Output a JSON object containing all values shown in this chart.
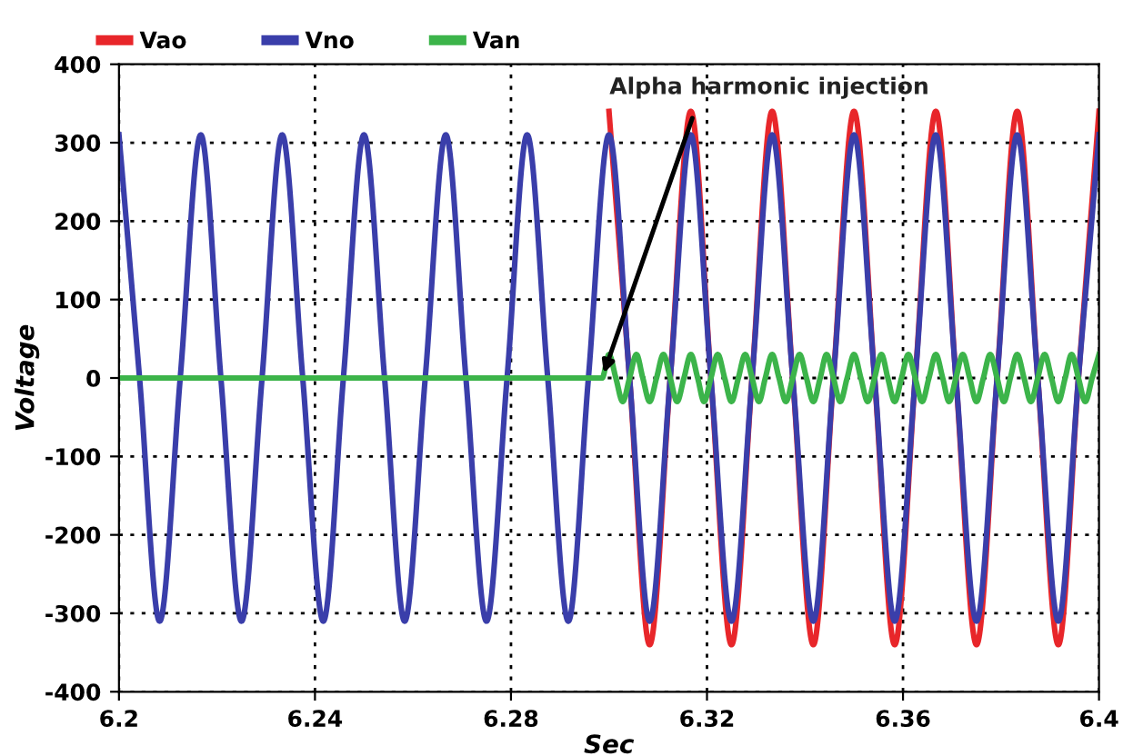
{
  "chart_data": {
    "type": "line",
    "xlabel": "Sec",
    "ylabel": "Voltage",
    "x": [
      6.2,
      6.2042,
      6.2083,
      6.2125,
      6.2167,
      6.2208,
      6.225,
      6.2292,
      6.2333,
      6.2375,
      6.2417,
      6.2458,
      6.25,
      6.2542,
      6.2583,
      6.2625,
      6.2667,
      6.2708,
      6.275,
      6.2792,
      6.2833,
      6.2875,
      6.2917,
      6.2958,
      6.3,
      6.3042,
      6.3083,
      6.3125,
      6.3167,
      6.3208,
      6.325,
      6.3292,
      6.3333,
      6.3375,
      6.3417,
      6.3458,
      6.35,
      6.3542,
      6.3583,
      6.3625,
      6.3667,
      6.3708,
      6.375,
      6.3792,
      6.3833,
      6.3875,
      6.3917,
      6.3958,
      6.4
    ],
    "series": [
      {
        "name": "Vao",
        "color": "#e8262a",
        "values": [
          null,
          null,
          null,
          null,
          null,
          null,
          null,
          null,
          null,
          null,
          null,
          null,
          null,
          null,
          null,
          null,
          null,
          null,
          null,
          null,
          null,
          null,
          null,
          null,
          340,
          0,
          -340,
          0,
          340,
          0,
          -340,
          0,
          340,
          0,
          -340,
          0,
          340,
          0,
          -340,
          0,
          340,
          0,
          -340,
          0,
          340,
          0,
          -340,
          0,
          340
        ]
      },
      {
        "name": "Vno",
        "color": "#3a3eaa",
        "values": [
          310,
          0,
          -310,
          0,
          310,
          0,
          -310,
          0,
          310,
          0,
          -310,
          0,
          310,
          0,
          -310,
          0,
          310,
          0,
          -310,
          0,
          310,
          0,
          -310,
          0,
          310,
          0,
          -310,
          0,
          310,
          0,
          -310,
          0,
          310,
          0,
          -310,
          0,
          310,
          0,
          -310,
          0,
          310,
          0,
          -310,
          0,
          310,
          0,
          -310,
          0,
          310
        ]
      },
      {
        "name": "Van",
        "color": "#3cb44a",
        "x": [
          6.2,
          6.2986,
          6.3,
          6.3014,
          6.3028,
          6.3042,
          6.3056,
          6.3069,
          6.3083,
          6.3097,
          6.3111,
          6.3125,
          6.3139,
          6.3153,
          6.3167,
          6.3181,
          6.3194,
          6.3208,
          6.3222,
          6.3236,
          6.325,
          6.3264,
          6.3278,
          6.3292,
          6.3306,
          6.3319,
          6.3333,
          6.3347,
          6.3361,
          6.3375,
          6.3389,
          6.3403,
          6.3417,
          6.3431,
          6.3444,
          6.3458,
          6.3472,
          6.3486,
          6.35,
          6.3514,
          6.3528,
          6.3542,
          6.3556,
          6.3569,
          6.3583,
          6.3597,
          6.3611,
          6.3625,
          6.3639,
          6.3653,
          6.3667,
          6.3681,
          6.3694,
          6.3708,
          6.3722,
          6.3736,
          6.375,
          6.3764,
          6.3778,
          6.3792,
          6.3806,
          6.3819,
          6.3833,
          6.3847,
          6.3861,
          6.3875,
          6.3889,
          6.3903,
          6.3917,
          6.3931,
          6.3944,
          6.3958,
          6.3972,
          6.3986,
          6.4
        ],
        "values": [
          0,
          0,
          30,
          0,
          -30,
          0,
          30,
          0,
          -30,
          0,
          30,
          0,
          -30,
          0,
          30,
          0,
          -30,
          0,
          30,
          0,
          -30,
          0,
          30,
          0,
          -30,
          0,
          30,
          0,
          -30,
          0,
          30,
          0,
          -30,
          0,
          30,
          0,
          -30,
          0,
          30,
          0,
          -30,
          0,
          30,
          0,
          -30,
          0,
          30,
          0,
          -30,
          0,
          30,
          0,
          -30,
          0,
          30,
          0,
          -30,
          0,
          30,
          0,
          -30,
          0,
          30,
          0,
          -30,
          0,
          30,
          0,
          -30,
          0,
          30,
          0,
          -30,
          0,
          30
        ]
      }
    ],
    "annotations": [
      {
        "text": "Alpha harmonic injection",
        "x": 6.2986,
        "y": 0
      }
    ],
    "xlim": [
      6.2,
      6.4
    ],
    "xticks": [
      6.2,
      6.24,
      6.28,
      6.32,
      6.36,
      6.4
    ],
    "ylim": [
      -400,
      400
    ],
    "yticks": [
      -400,
      -300,
      -200,
      -100,
      0,
      100,
      200,
      300,
      400
    ],
    "grid": true,
    "legend": "top left",
    "marker": "none",
    "line_style": "solid"
  }
}
